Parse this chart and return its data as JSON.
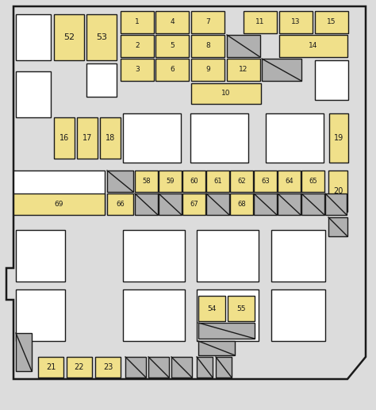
{
  "bg": "#dcdcdc",
  "yel": "#f0e08a",
  "whi": "#ffffff",
  "gry": "#b0b0b0",
  "blk": "#1a1a1a",
  "lw": 1.0
}
